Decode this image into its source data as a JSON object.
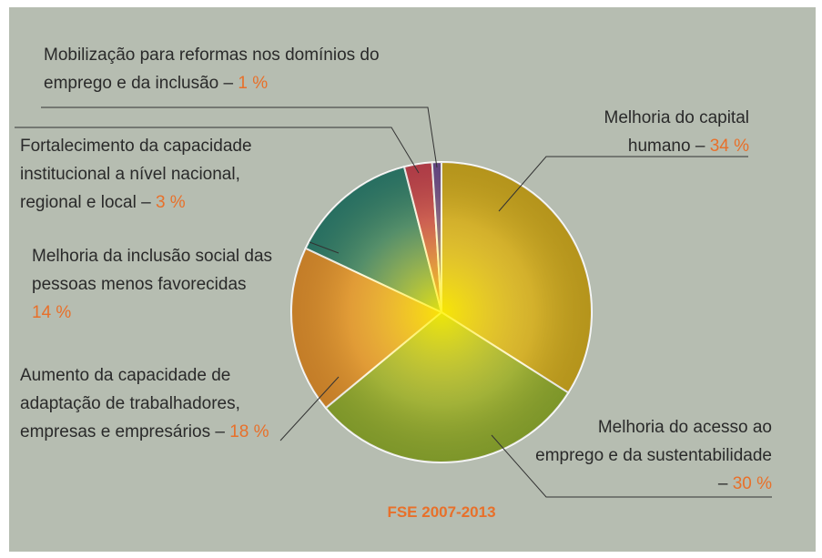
{
  "chart_data": {
    "type": "pie",
    "title": "FSE 2007-2013",
    "categories": [
      "Melhoria do capital humano –",
      "Melhoria do acesso ao emprego e da sustentabilidade –",
      "Aumento da capacidade de adaptação de trabalhadores, empresas e empresários –",
      "Melhoria da inclusão social das pessoas menos favorecidas",
      "Fortalecimento da capacidade institucional a nível nacional, regional e local –",
      "Mobilização para reformas nos domínios do emprego e da inclusão –"
    ],
    "values": [
      34,
      30,
      18,
      14,
      3,
      1
    ],
    "value_labels": [
      "34 %",
      "30 %",
      "18 %",
      "14 %",
      "3 %",
      "1 %"
    ],
    "colors": [
      "#c8a41e",
      "#8aa62e",
      "#d98a2c",
      "#2a7a6c",
      "#c0404e",
      "#6a4a8c"
    ]
  }
}
